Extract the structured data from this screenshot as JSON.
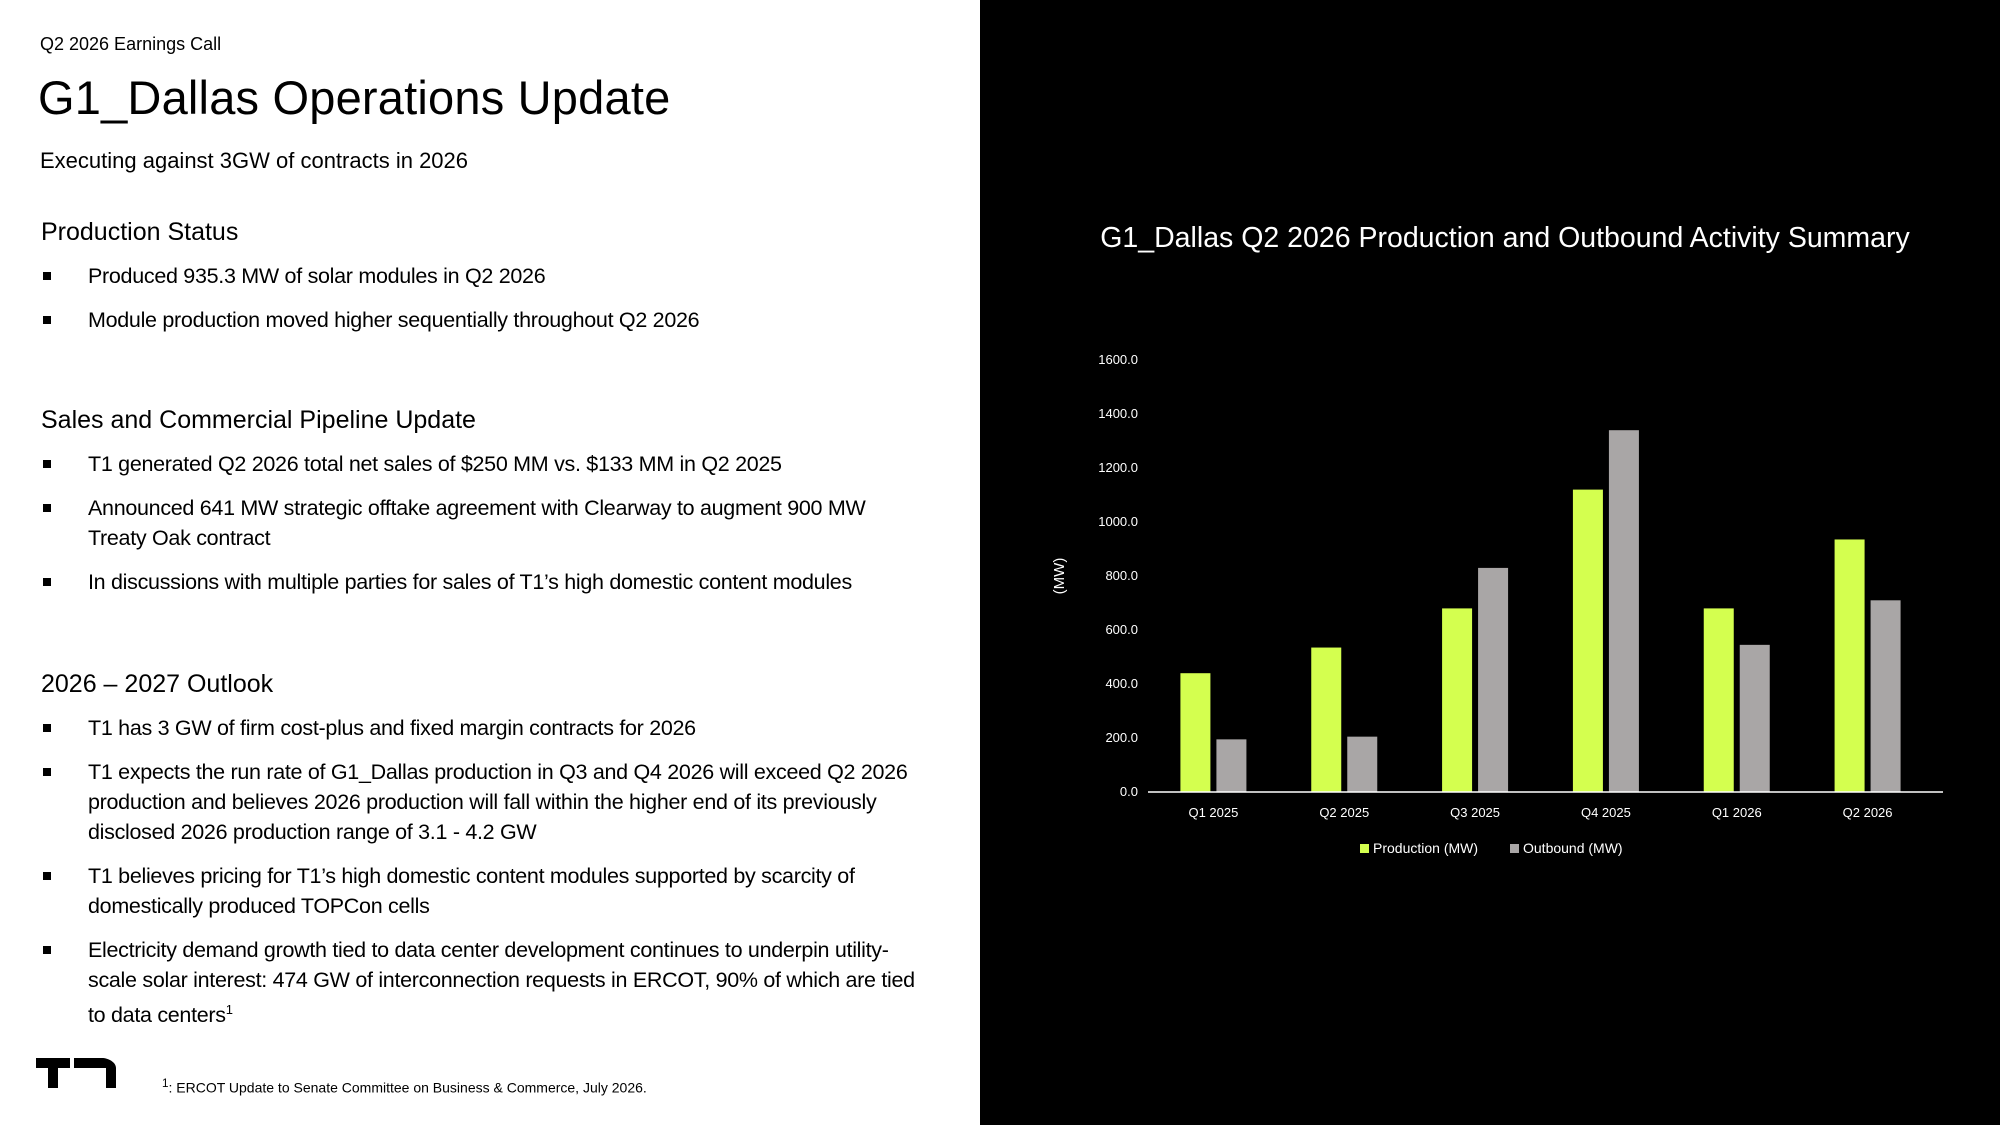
{
  "header": {
    "eyebrow": "Q2 2026 Earnings Call",
    "title": "G1_Dallas Operations Update",
    "subtitle": "Executing against 3GW of contracts in 2026"
  },
  "sections": [
    {
      "heading": "Production Status",
      "bullets": [
        "Produced 935.3 MW of solar modules in Q2 2026",
        "Module production moved higher sequentially throughout Q2 2026"
      ]
    },
    {
      "heading": "Sales and Commercial Pipeline Update",
      "bullets": [
        "T1 generated Q2 2026 total net sales of $250 MM vs. $133 MM in Q2 2025",
        "Announced 641 MW strategic offtake agreement with Clearway to augment 900 MW Treaty Oak contract",
        "In discussions with multiple parties for sales of T1’s high domestic content modules"
      ]
    },
    {
      "heading": "2026 – 2027 Outlook",
      "bullets": [
        "T1 has 3 GW of firm cost-plus and fixed margin contracts for 2026",
        "T1 expects the run rate of G1_Dallas production in Q3 and Q4 2026 will exceed Q2 2026 production and believes 2026 production will fall within the higher end of its previously disclosed 2026 production range of 3.1 - 4.2 GW",
        "T1 believes pricing for T1’s high domestic content modules supported by scarcity of domestically produced TOPCon cells",
        "Electricity demand growth tied to data center development continues to underpin utility-scale solar interest: 474 GW of interconnection requests in ERCOT, 90% of which are tied to data centers"
      ],
      "last_superscript": "1"
    }
  ],
  "footnote": {
    "marker": "1",
    "text": ": ERCOT Update to Senate Committee on Business & Commerce, July 2026."
  },
  "logo": {
    "icon": "t1-logo-icon"
  },
  "colors": {
    "production": "#d4ff4f",
    "outbound": "#a9a6a6",
    "panel_dark": "#000000",
    "text_dark": "#000000"
  },
  "chart_data": {
    "type": "bar",
    "title": "G1_Dallas Q2 2026 Production and Outbound Activity Summary",
    "xlabel": "",
    "ylabel": "(MW)",
    "categories": [
      "Q1 2025",
      "Q2 2025",
      "Q3 2025",
      "Q4 2025",
      "Q1 2026",
      "Q2 2026"
    ],
    "series": [
      {
        "name": "Production (MW)",
        "values": [
          440,
          535,
          680,
          1120,
          680,
          935.3
        ]
      },
      {
        "name": "Outbound (MW)",
        "values": [
          195,
          205,
          830,
          1340,
          545,
          710
        ]
      }
    ],
    "ylim": [
      0,
      1600
    ],
    "yticks": [
      "0.0",
      "200.0",
      "400.0",
      "600.0",
      "800.0",
      "1000.0",
      "1200.0",
      "1400.0",
      "1600.0"
    ],
    "grid": false,
    "legend_position": "bottom"
  }
}
